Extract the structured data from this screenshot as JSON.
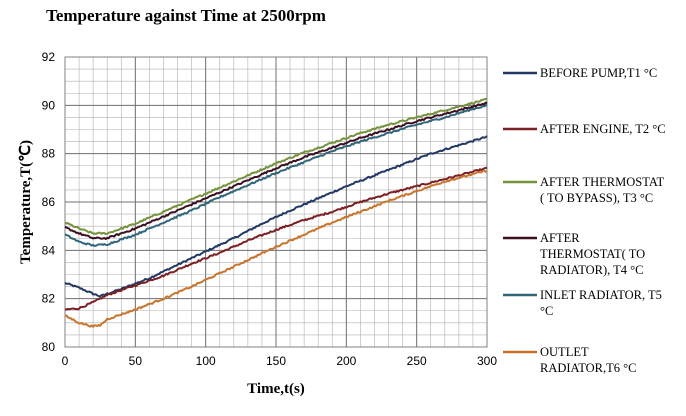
{
  "chart_data": {
    "type": "line",
    "title": "Temperature against Time at 2500rpm",
    "xlabel": "Time,t(s)",
    "ylabel": "Temperature,T(℃)",
    "xlim": [
      0,
      300
    ],
    "ylim": [
      80,
      92
    ],
    "xticks": [
      0,
      50,
      100,
      150,
      200,
      250,
      300
    ],
    "yticks": [
      80,
      82,
      84,
      86,
      88,
      90,
      92
    ],
    "grid": true,
    "legend_position": "right",
    "series": [
      {
        "name": "BEFORE PUMP,T1 °C",
        "legend_lines": [
          "BEFORE PUMP,T1 °C"
        ],
        "color": "#1f3864",
        "points": [
          [
            0,
            82.65
          ],
          [
            10,
            82.45
          ],
          [
            20,
            82.2
          ],
          [
            25,
            82.1
          ],
          [
            40,
            82.4
          ],
          [
            60,
            82.85
          ],
          [
            80,
            83.4
          ],
          [
            100,
            83.95
          ],
          [
            120,
            84.5
          ],
          [
            140,
            85.1
          ],
          [
            160,
            85.65
          ],
          [
            180,
            86.15
          ],
          [
            200,
            86.65
          ],
          [
            220,
            87.1
          ],
          [
            240,
            87.55
          ],
          [
            260,
            88.0
          ],
          [
            280,
            88.35
          ],
          [
            300,
            88.7
          ]
        ]
      },
      {
        "name": "AFTER ENGINE, T2 °C",
        "legend_lines": [
          "AFTER ENGINE, T2 °C"
        ],
        "color": "#7b2024",
        "points": [
          [
            0,
            81.55
          ],
          [
            10,
            81.6
          ],
          [
            20,
            81.85
          ],
          [
            30,
            82.15
          ],
          [
            50,
            82.55
          ],
          [
            70,
            82.95
          ],
          [
            90,
            83.45
          ],
          [
            110,
            83.9
          ],
          [
            130,
            84.4
          ],
          [
            150,
            84.85
          ],
          [
            170,
            85.25
          ],
          [
            190,
            85.6
          ],
          [
            210,
            86.0
          ],
          [
            230,
            86.35
          ],
          [
            250,
            86.65
          ],
          [
            270,
            86.95
          ],
          [
            290,
            87.25
          ],
          [
            300,
            87.4
          ]
        ]
      },
      {
        "name": "AFTER THERMOSTAT ( TO BYPASS), T3 °C",
        "legend_lines": [
          "AFTER THERMOSTAT",
          "( TO BYPASS), T3 °C"
        ],
        "color": "#76923c",
        "points": [
          [
            0,
            85.15
          ],
          [
            10,
            84.9
          ],
          [
            20,
            84.7
          ],
          [
            30,
            84.7
          ],
          [
            50,
            85.1
          ],
          [
            70,
            85.6
          ],
          [
            90,
            86.1
          ],
          [
            110,
            86.6
          ],
          [
            130,
            87.1
          ],
          [
            150,
            87.6
          ],
          [
            170,
            88.05
          ],
          [
            190,
            88.45
          ],
          [
            210,
            88.85
          ],
          [
            230,
            89.2
          ],
          [
            250,
            89.5
          ],
          [
            270,
            89.8
          ],
          [
            290,
            90.1
          ],
          [
            300,
            90.25
          ]
        ]
      },
      {
        "name": "AFTER THERMOSTAT( TO RADIATOR), T4 °C",
        "legend_lines": [
          "AFTER",
          "THERMOSTAT( TO",
          "RADIATOR), T4 °C"
        ],
        "color": "#3a1020",
        "points": [
          [
            0,
            84.95
          ],
          [
            10,
            84.7
          ],
          [
            20,
            84.5
          ],
          [
            30,
            84.5
          ],
          [
            50,
            84.9
          ],
          [
            70,
            85.4
          ],
          [
            90,
            85.9
          ],
          [
            110,
            86.4
          ],
          [
            130,
            86.9
          ],
          [
            150,
            87.4
          ],
          [
            170,
            87.85
          ],
          [
            190,
            88.25
          ],
          [
            210,
            88.65
          ],
          [
            230,
            89.0
          ],
          [
            250,
            89.35
          ],
          [
            270,
            89.65
          ],
          [
            290,
            89.95
          ],
          [
            300,
            90.1
          ]
        ]
      },
      {
        "name": "INLET RADIATOR, T5 °C",
        "legend_lines": [
          "INLET RADIATOR, T5",
          "°C"
        ],
        "color": "#31657a",
        "points": [
          [
            0,
            84.65
          ],
          [
            10,
            84.35
          ],
          [
            20,
            84.2
          ],
          [
            30,
            84.25
          ],
          [
            50,
            84.65
          ],
          [
            70,
            85.15
          ],
          [
            90,
            85.65
          ],
          [
            110,
            86.2
          ],
          [
            130,
            86.7
          ],
          [
            150,
            87.2
          ],
          [
            170,
            87.65
          ],
          [
            190,
            88.1
          ],
          [
            210,
            88.5
          ],
          [
            230,
            88.85
          ],
          [
            250,
            89.2
          ],
          [
            270,
            89.5
          ],
          [
            290,
            89.85
          ],
          [
            300,
            90.0
          ]
        ]
      },
      {
        "name": "OUTLET RADIATOR,T6 °C",
        "legend_lines": [
          "OUTLET",
          "RADIATOR,T6 °C"
        ],
        "color": "#c8742c",
        "points": [
          [
            0,
            81.3
          ],
          [
            10,
            81.0
          ],
          [
            20,
            80.85
          ],
          [
            25,
            80.9
          ],
          [
            30,
            81.15
          ],
          [
            50,
            81.55
          ],
          [
            70,
            82.0
          ],
          [
            90,
            82.5
          ],
          [
            110,
            83.05
          ],
          [
            130,
            83.6
          ],
          [
            150,
            84.15
          ],
          [
            170,
            84.65
          ],
          [
            190,
            85.15
          ],
          [
            210,
            85.6
          ],
          [
            230,
            86.05
          ],
          [
            250,
            86.45
          ],
          [
            270,
            86.85
          ],
          [
            290,
            87.15
          ],
          [
            300,
            87.3
          ]
        ]
      }
    ]
  }
}
